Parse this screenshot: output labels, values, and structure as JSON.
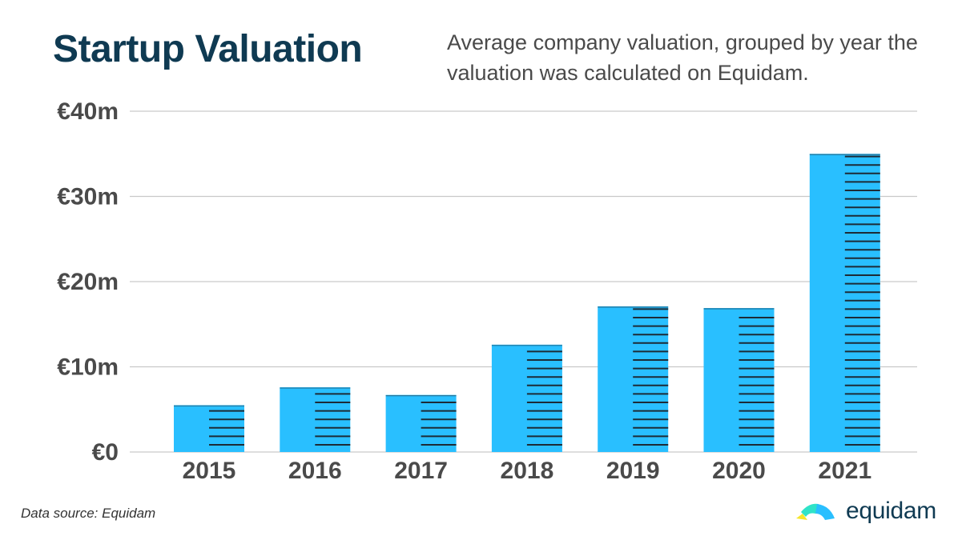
{
  "header": {
    "title": "Startup Valuation",
    "subtitle": "Average company valuation, grouped by year the valuation was calculated on Equidam."
  },
  "footer": {
    "source": "Data source: Equidam",
    "brand": "equidam"
  },
  "colors": {
    "bar": "#29bfff",
    "stripe": "#1d2b36",
    "grid": "#c9c9c9",
    "axis_text": "#4a4a4a",
    "title": "#0f3a52"
  },
  "chart_data": {
    "type": "bar",
    "title": "Startup Valuation",
    "subtitle": "Average company valuation, grouped by year the valuation was calculated on Equidam.",
    "categories": [
      "2015",
      "2016",
      "2017",
      "2018",
      "2019",
      "2020",
      "2021"
    ],
    "values": [
      5.5,
      7.6,
      6.7,
      12.6,
      17.1,
      16.9,
      35.0
    ],
    "unit": "€m",
    "ylim": [
      0,
      40
    ],
    "yticks": [
      0,
      10,
      20,
      30,
      40
    ],
    "ytick_labels": [
      "€0",
      "€10m",
      "€20m",
      "€30m",
      "€40m"
    ],
    "xlabel": "",
    "ylabel": "",
    "grid": true,
    "legend": "none"
  }
}
